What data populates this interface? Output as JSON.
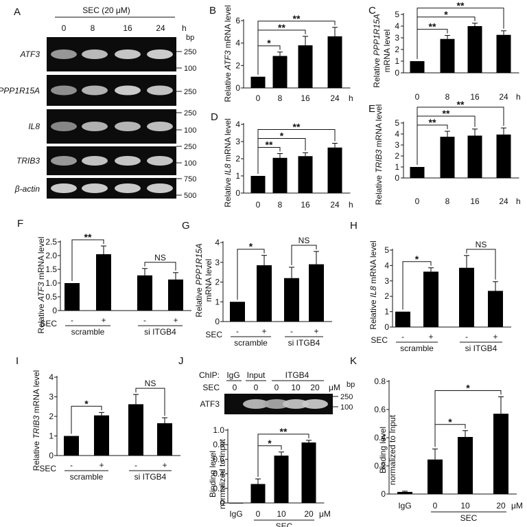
{
  "panels": {
    "A": {
      "letter": "A",
      "treatment_label": "SEC (20 μM)",
      "timepoints": [
        "0",
        "8",
        "16",
        "24"
      ],
      "time_unit": "h",
      "bp_label": "bp",
      "rows": [
        {
          "gene": "ATF3",
          "markers": [
            "250",
            "100"
          ],
          "band": [
            0.55,
            0.75,
            0.82,
            0.86
          ]
        },
        {
          "gene": "PPP1R15A",
          "markers": [
            "250"
          ],
          "band": [
            0.5,
            0.7,
            0.85,
            0.8
          ]
        },
        {
          "gene": "IL8",
          "markers": [
            "250",
            "100"
          ],
          "band": [
            0.45,
            0.7,
            0.72,
            0.78
          ]
        },
        {
          "gene": "TRIB3",
          "markers": [
            "250",
            "100"
          ],
          "band": [
            0.55,
            0.8,
            0.82,
            0.82
          ]
        },
        {
          "gene": "β-actin",
          "markers": [
            "750",
            "500"
          ],
          "band": [
            0.85,
            0.85,
            0.85,
            0.85
          ]
        }
      ]
    },
    "B": {
      "letter": "B",
      "gene": "ATF3",
      "ylabel_pre": "Relative ",
      "ylabel_post": " mRNA level"
    },
    "C": {
      "letter": "C",
      "gene": "PPP1R15A",
      "ylabel_pre": "Relative ",
      "ylabel_line2": "mRNA level"
    },
    "D": {
      "letter": "D",
      "gene": "IL8",
      "ylabel_pre": "Relative ",
      "ylabel_post": " mRNA level"
    },
    "E": {
      "letter": "E",
      "gene": "TRIB3",
      "ylabel_pre": "Relative ",
      "ylabel_post": " mRNA level"
    },
    "F": {
      "letter": "F",
      "gene": "ATF3",
      "ylabel_pre": "Relative ",
      "ylabel_post": " mRNA level"
    },
    "G": {
      "letter": "G",
      "gene": "PPP1R15A",
      "ylabel_pre": "Relative ",
      "ylabel_line2": "mRNA level"
    },
    "H": {
      "letter": "H",
      "gene": "IL8",
      "ylabel_pre": "Relative ",
      "ylabel_post": " mRNA level"
    },
    "I": {
      "letter": "I",
      "gene": "TRIB3",
      "ylabel_pre": "Relative ",
      "ylabel_post": " mRNA level"
    },
    "J": {
      "letter": "J",
      "chip_label": "ChIP:",
      "chip_groups": [
        "IgG",
        "Input",
        "ITGB4"
      ],
      "sec_label": "SEC",
      "sec_values": [
        "0",
        "0",
        "0",
        "10",
        "20"
      ],
      "unit": "μM",
      "bp_label": "bp",
      "gene": "ATF3",
      "markers": [
        "250",
        "100"
      ],
      "band": [
        0.0,
        0.7,
        0.6,
        0.75,
        0.78
      ],
      "ylabel_line1": "Binding level",
      "ylabel_line2": "normalized to Input"
    },
    "K": {
      "letter": "K",
      "ylabel_line1": "Binding level",
      "ylabel_line2": "normalized to Input"
    }
  },
  "chart_data": [
    {
      "panel": "B",
      "type": "bar",
      "categories": [
        "0",
        "8",
        "16",
        "24"
      ],
      "x_unit": "h",
      "values": [
        1.0,
        2.85,
        3.8,
        4.6
      ],
      "errors": [
        0,
        0.35,
        0.8,
        0.8
      ],
      "ylabel": "Relative ATF3 mRNA level",
      "ylim": [
        0,
        6
      ],
      "yticks": [
        "0",
        "2",
        "4",
        "6"
      ],
      "significance": [
        {
          "from": 0,
          "to": 1,
          "label": "*"
        },
        {
          "from": 0,
          "to": 2,
          "label": "**"
        },
        {
          "from": 0,
          "to": 3,
          "label": "**"
        }
      ]
    },
    {
      "panel": "C",
      "type": "bar",
      "categories": [
        "0",
        "8",
        "16",
        "24"
      ],
      "x_unit": "h",
      "values": [
        1.0,
        2.9,
        4.0,
        3.25
      ],
      "errors": [
        0,
        0.3,
        0.25,
        0.35
      ],
      "ylabel": "Relative PPP1R15A mRNA level",
      "ylim": [
        0,
        5
      ],
      "yticks": [
        "0",
        "1",
        "2",
        "3",
        "4",
        "5"
      ],
      "significance": [
        {
          "from": 0,
          "to": 1,
          "label": "**"
        },
        {
          "from": 0,
          "to": 2,
          "label": "*"
        },
        {
          "from": 0,
          "to": 3,
          "label": "**"
        }
      ]
    },
    {
      "panel": "D",
      "type": "bar",
      "categories": [
        "0",
        "8",
        "16",
        "24"
      ],
      "x_unit": "h",
      "values": [
        1.0,
        2.05,
        2.15,
        2.65
      ],
      "errors": [
        0,
        0.25,
        0.2,
        0.25
      ],
      "ylabel": "Relative IL8 mRNA level",
      "ylim": [
        0,
        4
      ],
      "yticks": [
        "0",
        "1",
        "2",
        "3",
        "4"
      ],
      "significance": [
        {
          "from": 0,
          "to": 1,
          "label": "**"
        },
        {
          "from": 0,
          "to": 2,
          "label": "*"
        },
        {
          "from": 0,
          "to": 3,
          "label": "**"
        }
      ]
    },
    {
      "panel": "E",
      "type": "bar",
      "categories": [
        "0",
        "8",
        "16",
        "24"
      ],
      "x_unit": "h",
      "values": [
        1.0,
        3.75,
        3.85,
        3.95
      ],
      "errors": [
        0,
        0.5,
        0.6,
        0.6
      ],
      "ylabel": "Relative TRIB3 mRNA level",
      "ylim": [
        0,
        5
      ],
      "yticks": [
        "0",
        "1",
        "2",
        "3",
        "4",
        "5"
      ],
      "significance": [
        {
          "from": 0,
          "to": 1,
          "label": "**"
        },
        {
          "from": 0,
          "to": 2,
          "label": "**"
        },
        {
          "from": 0,
          "to": 3,
          "label": "**"
        }
      ]
    },
    {
      "panel": "F",
      "type": "bar",
      "sec": [
        "-",
        "+",
        "-",
        "+"
      ],
      "sec_label": "SEC",
      "groups": [
        "scramble",
        "si ITGB4"
      ],
      "values": [
        1.0,
        2.05,
        1.28,
        1.13
      ],
      "errors": [
        0,
        0.3,
        0.25,
        0.25
      ],
      "ylabel": "Relative ATF3 mRNA level",
      "ylim": [
        0,
        2.5
      ],
      "yticks": [
        "0",
        "0.5",
        "1.0",
        "1.5",
        "2.0",
        "2.5"
      ],
      "significance": [
        {
          "from": 0,
          "to": 1,
          "label": "**"
        },
        {
          "from": 2,
          "to": 3,
          "label": "NS"
        }
      ]
    },
    {
      "panel": "G",
      "type": "bar",
      "sec": [
        "-",
        "+",
        "-",
        "+"
      ],
      "sec_label": "SEC",
      "groups": [
        "scramble",
        "si ITGB4"
      ],
      "values": [
        1.0,
        2.85,
        2.2,
        2.9
      ],
      "errors": [
        0,
        0.5,
        0.55,
        0.65
      ],
      "ylabel": "Relative PPP1R15A mRNA level",
      "ylim": [
        0,
        4
      ],
      "yticks": [
        "0",
        "1",
        "2",
        "3",
        "4"
      ],
      "significance": [
        {
          "from": 0,
          "to": 1,
          "label": "*"
        },
        {
          "from": 2,
          "to": 3,
          "label": "NS"
        }
      ]
    },
    {
      "panel": "H",
      "type": "bar",
      "sec": [
        "-",
        "+",
        "-",
        "+"
      ],
      "sec_label": "SEC",
      "groups": [
        "scramble",
        "si ITGB4"
      ],
      "values": [
        1.0,
        3.6,
        3.85,
        2.35
      ],
      "errors": [
        0,
        0.25,
        0.8,
        0.6
      ],
      "ylabel": "Relative IL8 mRNA level",
      "ylim": [
        0,
        5
      ],
      "yticks": [
        "0",
        "1",
        "2",
        "3",
        "4",
        "5"
      ],
      "significance": [
        {
          "from": 0,
          "to": 1,
          "label": "*"
        },
        {
          "from": 2,
          "to": 3,
          "label": "NS"
        }
      ]
    },
    {
      "panel": "I",
      "type": "bar",
      "sec": [
        "-",
        "+",
        "-",
        "+"
      ],
      "sec_label": "SEC",
      "groups": [
        "scramble",
        "si ITGB4"
      ],
      "values": [
        1.0,
        2.05,
        2.62,
        1.65
      ],
      "errors": [
        0,
        0.15,
        0.5,
        0.28
      ],
      "ylabel": "Relative TRIB3 mRNA level",
      "ylim": [
        0,
        4
      ],
      "yticks": [
        "0",
        "1",
        "2",
        "3",
        "4"
      ],
      "significance": [
        {
          "from": 0,
          "to": 1,
          "label": "*"
        },
        {
          "from": 2,
          "to": 3,
          "label": "NS"
        }
      ]
    },
    {
      "panel": "J",
      "type": "bar",
      "categories": [
        "IgG",
        "0",
        "10",
        "20"
      ],
      "x_unit": "μM",
      "group_label": "SEC",
      "values": [
        0,
        0.26,
        0.65,
        0.83
      ],
      "errors": [
        0,
        0.07,
        0.05,
        0.03
      ],
      "ylabel": "Binding level normalized to Input",
      "ylim": [
        0,
        1.0
      ],
      "yticks": [
        "0",
        "0.2",
        "0.4",
        "0.6",
        "0.8",
        "1.0"
      ],
      "significance": [
        {
          "from": 1,
          "to": 2,
          "label": "*"
        },
        {
          "from": 1,
          "to": 3,
          "label": "**"
        }
      ]
    },
    {
      "panel": "K",
      "type": "bar",
      "categories": [
        "IgG",
        "0",
        "10",
        "20"
      ],
      "x_unit": "μM",
      "group_label": "SEC",
      "values": [
        0.015,
        0.245,
        0.405,
        0.57
      ],
      "errors": [
        0.005,
        0.075,
        0.045,
        0.12
      ],
      "ylabel": "Binding level normalized to Input",
      "ylim": [
        0,
        0.8
      ],
      "yticks": [
        "0",
        "0.2",
        "0.4",
        "0.6",
        "0.8"
      ],
      "significance": [
        {
          "from": 1,
          "to": 2,
          "label": "*"
        },
        {
          "from": 1,
          "to": 3,
          "label": "*"
        }
      ]
    }
  ]
}
